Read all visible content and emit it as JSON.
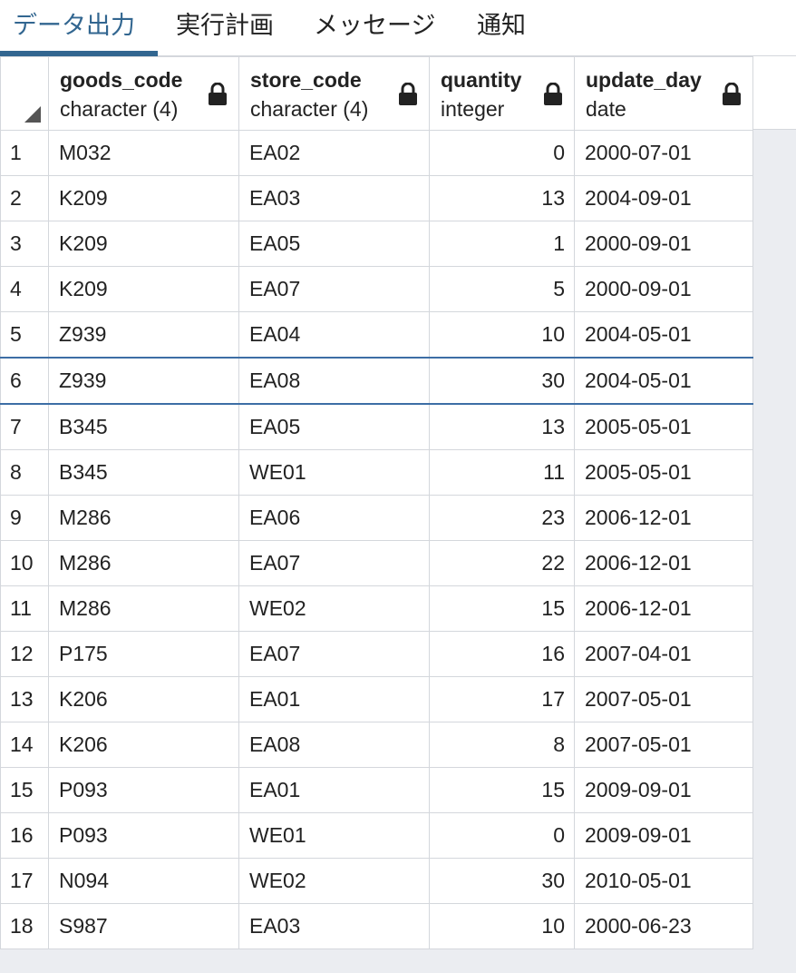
{
  "tabs": [
    {
      "label": "データ出力",
      "active": true
    },
    {
      "label": "実行計画",
      "active": false
    },
    {
      "label": "メッセージ",
      "active": false
    },
    {
      "label": "通知",
      "active": false
    }
  ],
  "columns": [
    {
      "name": "goods_code",
      "type": "character (4)"
    },
    {
      "name": "store_code",
      "type": "character (4)"
    },
    {
      "name": "quantity",
      "type": "integer"
    },
    {
      "name": "update_day",
      "type": "date"
    }
  ],
  "rows": [
    {
      "num": "1",
      "goods_code": "M032",
      "store_code": "EA02",
      "quantity": "0",
      "update_day": "2000-07-01"
    },
    {
      "num": "2",
      "goods_code": "K209",
      "store_code": "EA03",
      "quantity": "13",
      "update_day": "2004-09-01"
    },
    {
      "num": "3",
      "goods_code": "K209",
      "store_code": "EA05",
      "quantity": "1",
      "update_day": "2000-09-01"
    },
    {
      "num": "4",
      "goods_code": "K209",
      "store_code": "EA07",
      "quantity": "5",
      "update_day": "2000-09-01"
    },
    {
      "num": "5",
      "goods_code": "Z939",
      "store_code": "EA04",
      "quantity": "10",
      "update_day": "2004-05-01"
    },
    {
      "num": "6",
      "goods_code": "Z939",
      "store_code": "EA08",
      "quantity": "30",
      "update_day": "2004-05-01",
      "selected": true
    },
    {
      "num": "7",
      "goods_code": "B345",
      "store_code": "EA05",
      "quantity": "13",
      "update_day": "2005-05-01"
    },
    {
      "num": "8",
      "goods_code": "B345",
      "store_code": "WE01",
      "quantity": "11",
      "update_day": "2005-05-01"
    },
    {
      "num": "9",
      "goods_code": "M286",
      "store_code": "EA06",
      "quantity": "23",
      "update_day": "2006-12-01"
    },
    {
      "num": "10",
      "goods_code": "M286",
      "store_code": "EA07",
      "quantity": "22",
      "update_day": "2006-12-01"
    },
    {
      "num": "11",
      "goods_code": "M286",
      "store_code": "WE02",
      "quantity": "15",
      "update_day": "2006-12-01"
    },
    {
      "num": "12",
      "goods_code": "P175",
      "store_code": "EA07",
      "quantity": "16",
      "update_day": "2007-04-01"
    },
    {
      "num": "13",
      "goods_code": "K206",
      "store_code": "EA01",
      "quantity": "17",
      "update_day": "2007-05-01"
    },
    {
      "num": "14",
      "goods_code": "K206",
      "store_code": "EA08",
      "quantity": "8",
      "update_day": "2007-05-01"
    },
    {
      "num": "15",
      "goods_code": "P093",
      "store_code": "EA01",
      "quantity": "15",
      "update_day": "2009-09-01"
    },
    {
      "num": "16",
      "goods_code": "P093",
      "store_code": "WE01",
      "quantity": "0",
      "update_day": "2009-09-01"
    },
    {
      "num": "17",
      "goods_code": "N094",
      "store_code": "WE02",
      "quantity": "30",
      "update_day": "2010-05-01"
    },
    {
      "num": "18",
      "goods_code": "S987",
      "store_code": "EA03",
      "quantity": "10",
      "update_day": "2000-06-23"
    }
  ],
  "colors": {
    "accent": "#326690",
    "selection_border": "#3d6ea5",
    "grid_line": "#d4d7dc",
    "background": "#ebedf1"
  },
  "icons": {
    "column_lock": "lock-icon",
    "select_all": "corner-triangle-icon"
  }
}
